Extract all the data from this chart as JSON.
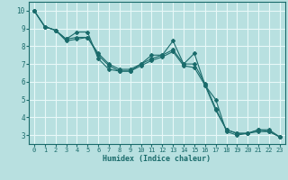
{
  "xlabel": "Humidex (Indice chaleur)",
  "bg_color": "#b8e0e0",
  "grid_color": "#e8f8f8",
  "line_color": "#1a6b6b",
  "xlim": [
    -0.5,
    23.5
  ],
  "ylim": [
    2.5,
    10.5
  ],
  "xticks": [
    0,
    1,
    2,
    3,
    4,
    5,
    6,
    7,
    8,
    9,
    10,
    11,
    12,
    13,
    14,
    15,
    16,
    17,
    18,
    19,
    20,
    21,
    22,
    23
  ],
  "yticks": [
    3,
    4,
    5,
    6,
    7,
    8,
    9,
    10
  ],
  "line1_x": [
    0,
    1,
    2,
    3,
    4,
    5,
    6,
    7,
    8,
    9,
    10,
    11,
    12,
    13,
    14,
    15,
    16,
    17,
    18,
    19,
    20,
    21,
    22,
    23
  ],
  "line1_y": [
    10.0,
    9.1,
    8.9,
    8.4,
    8.8,
    8.8,
    7.3,
    6.7,
    6.6,
    6.6,
    7.0,
    7.5,
    7.5,
    8.3,
    7.0,
    7.6,
    5.8,
    5.0,
    3.2,
    3.0,
    3.1,
    3.3,
    3.3,
    2.9
  ],
  "line2_x": [
    0,
    1,
    2,
    3,
    4,
    5,
    6,
    7,
    8,
    9,
    10,
    11,
    12,
    13,
    14,
    15,
    16,
    17,
    18,
    19,
    20,
    21,
    22,
    23
  ],
  "line2_y": [
    10.0,
    9.1,
    8.9,
    8.4,
    8.5,
    8.5,
    7.5,
    6.9,
    6.6,
    6.6,
    6.9,
    7.2,
    7.4,
    7.7,
    6.9,
    6.8,
    5.8,
    4.4,
    3.3,
    3.1,
    3.1,
    3.2,
    3.2,
    2.9
  ],
  "line3_x": [
    0,
    1,
    2,
    3,
    4,
    5,
    6,
    7,
    8,
    9,
    10,
    11,
    12,
    13,
    14,
    15,
    16,
    17,
    18,
    19,
    20,
    21,
    22,
    23
  ],
  "line3_y": [
    10.0,
    9.1,
    8.9,
    8.3,
    8.4,
    8.5,
    7.6,
    7.0,
    6.7,
    6.7,
    7.0,
    7.3,
    7.5,
    7.8,
    7.0,
    7.0,
    5.9,
    4.5,
    3.3,
    3.1,
    3.1,
    3.3,
    3.2,
    2.9
  ]
}
